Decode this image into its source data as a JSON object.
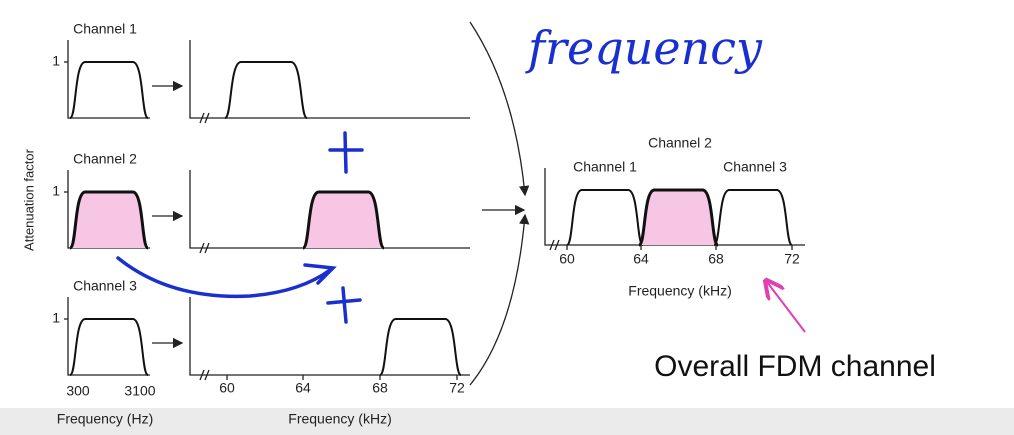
{
  "diagram": {
    "y_axis_label": "Attenuation factor",
    "handwriting": "frequency",
    "caption": "Overall FDM channel",
    "baseband": {
      "channels": [
        {
          "label": "Channel 1",
          "level": "1"
        },
        {
          "label": "Channel 2",
          "level": "1"
        },
        {
          "label": "Channel 3",
          "level": "1"
        }
      ],
      "ticks": [
        "300",
        "3100"
      ],
      "axis_label": "Frequency (Hz)"
    },
    "shifted": {
      "ticks": [
        "60",
        "64",
        "68",
        "72"
      ],
      "axis_label": "Frequency (kHz)"
    },
    "combined": {
      "labels": [
        "Channel 2",
        "Channel 1",
        "Channel 3"
      ],
      "ticks": [
        "60",
        "64",
        "68",
        "72"
      ],
      "axis_label": "Frequency (kHz)"
    }
  }
}
